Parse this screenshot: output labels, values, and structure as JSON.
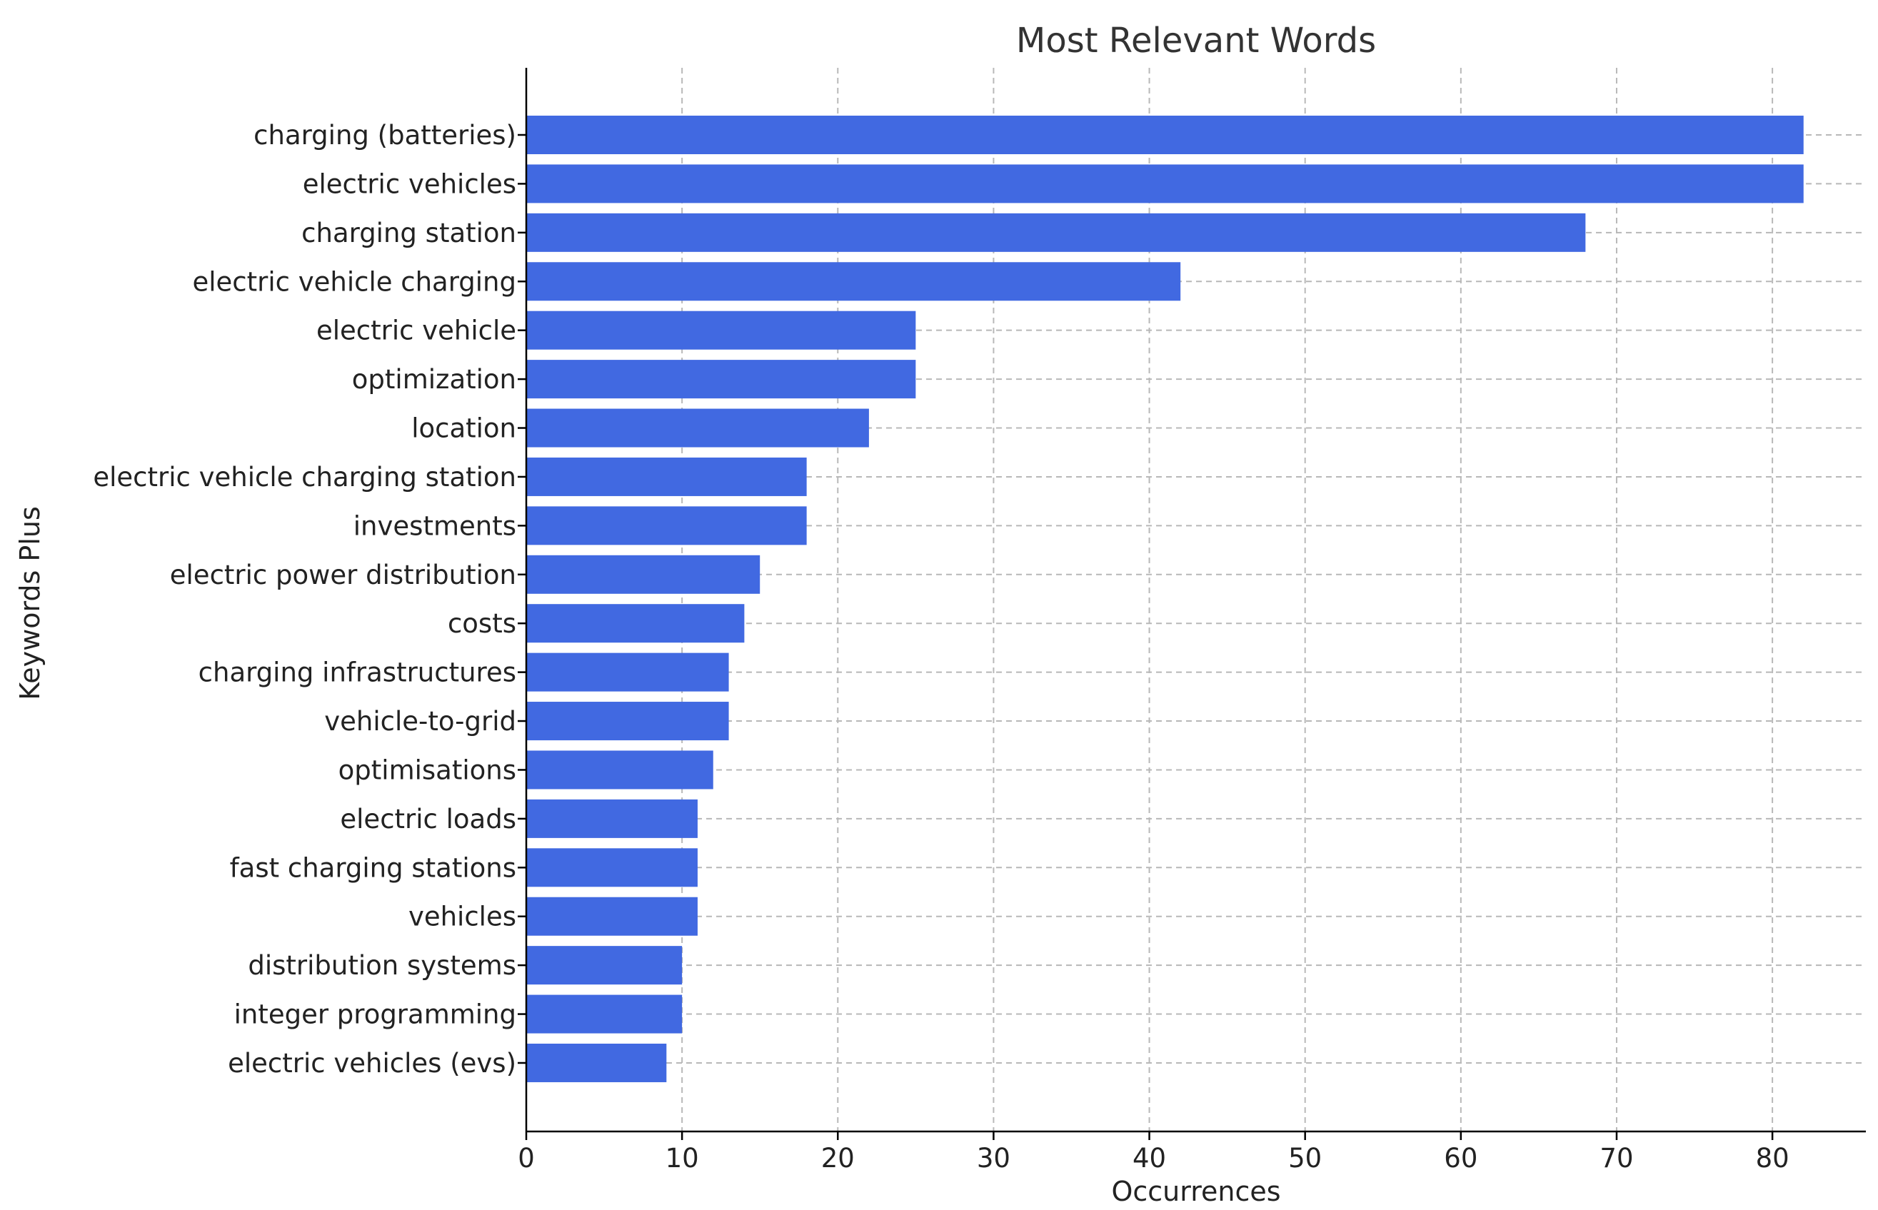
{
  "chart_data": {
    "type": "bar",
    "orientation": "horizontal",
    "title": "Most Relevant Words",
    "xlabel": "Occurrences",
    "ylabel": "Keywords Plus",
    "xlim": [
      0,
      86
    ],
    "xticks": [
      "0",
      "10",
      "20",
      "30",
      "40",
      "50",
      "60",
      "70",
      "80"
    ],
    "grid": true,
    "bar_color": "#4169E1",
    "categories": [
      "charging (batteries)",
      "electric vehicles",
      "charging station",
      "electric vehicle charging",
      "electric vehicle",
      "optimization",
      "location",
      "electric vehicle charging station",
      "investments",
      "electric power distribution",
      "costs",
      "charging infrastructures",
      "vehicle-to-grid",
      "optimisations",
      "electric loads",
      "fast charging stations",
      "vehicles",
      "distribution systems",
      "integer programming",
      "electric vehicles (evs)"
    ],
    "values": [
      82,
      82,
      68,
      42,
      25,
      25,
      22,
      18,
      18,
      15,
      14,
      13,
      13,
      12,
      11,
      11,
      11,
      10,
      10,
      9
    ]
  }
}
